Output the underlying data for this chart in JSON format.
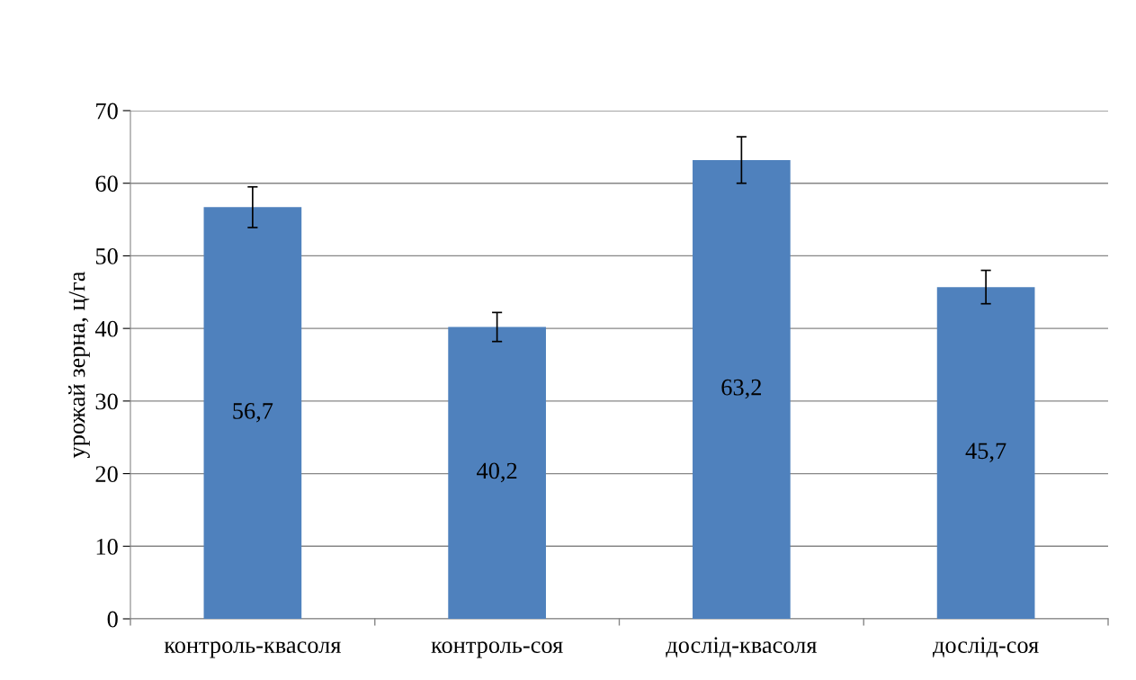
{
  "chart_data": {
    "type": "bar",
    "ylabel": "урожай зерна, ц/га",
    "categories": [
      "контроль-квасоля",
      "контроль-соя",
      "дослід-квасоля",
      "дослід-соя"
    ],
    "values": [
      56.7,
      40.2,
      63.2,
      45.7
    ],
    "errors": [
      2.8,
      2.0,
      3.2,
      2.3
    ],
    "value_labels": [
      "56,7",
      "40,2",
      "63,2",
      "45,7"
    ],
    "color": "#4f81bd",
    "ylim": [
      0,
      70
    ],
    "yticks": [
      0,
      10,
      20,
      30,
      40,
      50,
      60,
      70
    ],
    "grid": "y",
    "legend": false
  }
}
